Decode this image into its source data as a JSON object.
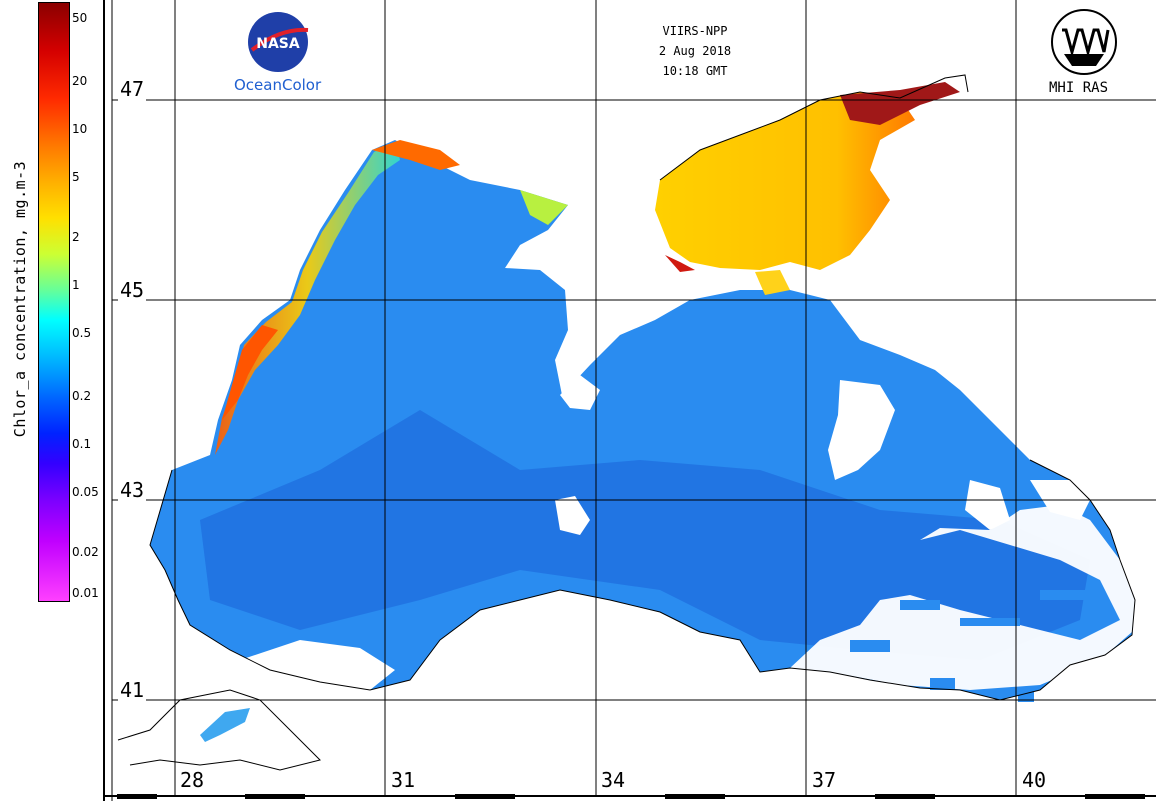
{
  "header": {
    "satellite": "VIIRS-NPP",
    "date": "2 Aug 2018",
    "time": "10:18 GMT"
  },
  "logos": {
    "left_text": "OceanColor",
    "right_text": "MHI RAS"
  },
  "colorbar": {
    "title": "Chlor_a concentration, mg.m-3",
    "ticks": [
      "50",
      "20",
      "10",
      "5",
      "2",
      "1",
      "0.5",
      "0.2",
      "0.1",
      "0.05",
      "0.02",
      "0.01"
    ],
    "scale": "log",
    "range": [
      0.01,
      50
    ]
  },
  "map": {
    "latitudes": [
      "47",
      "45",
      "43",
      "41"
    ],
    "longitudes": [
      "28",
      "31",
      "34",
      "37",
      "40"
    ]
  }
}
